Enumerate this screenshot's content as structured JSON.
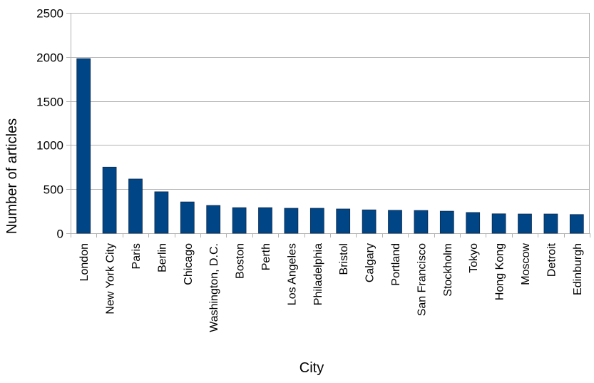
{
  "chart_data": {
    "type": "bar",
    "title": "",
    "xlabel": "City",
    "ylabel": "Number of articles",
    "ylim": [
      0,
      2500
    ],
    "yticks": [
      0,
      500,
      1000,
      1500,
      2000,
      2500
    ],
    "grid": true,
    "legend": "none",
    "bar_color": "#004586",
    "categories": [
      "London",
      "New York City",
      "Paris",
      "Berlin",
      "Chicago",
      "Washington, D.C.",
      "Boston",
      "Perth",
      "Los Angeles",
      "Philadelphia",
      "Bristol",
      "Calgary",
      "Portland",
      "San Francisco",
      "Stockholm",
      "Tokyo",
      "Hong Kong",
      "Moscow",
      "Detroit",
      "Edinburgh"
    ],
    "values": [
      1980,
      750,
      615,
      470,
      355,
      315,
      290,
      290,
      283,
      283,
      275,
      265,
      260,
      258,
      250,
      235,
      220,
      218,
      218,
      212
    ]
  }
}
